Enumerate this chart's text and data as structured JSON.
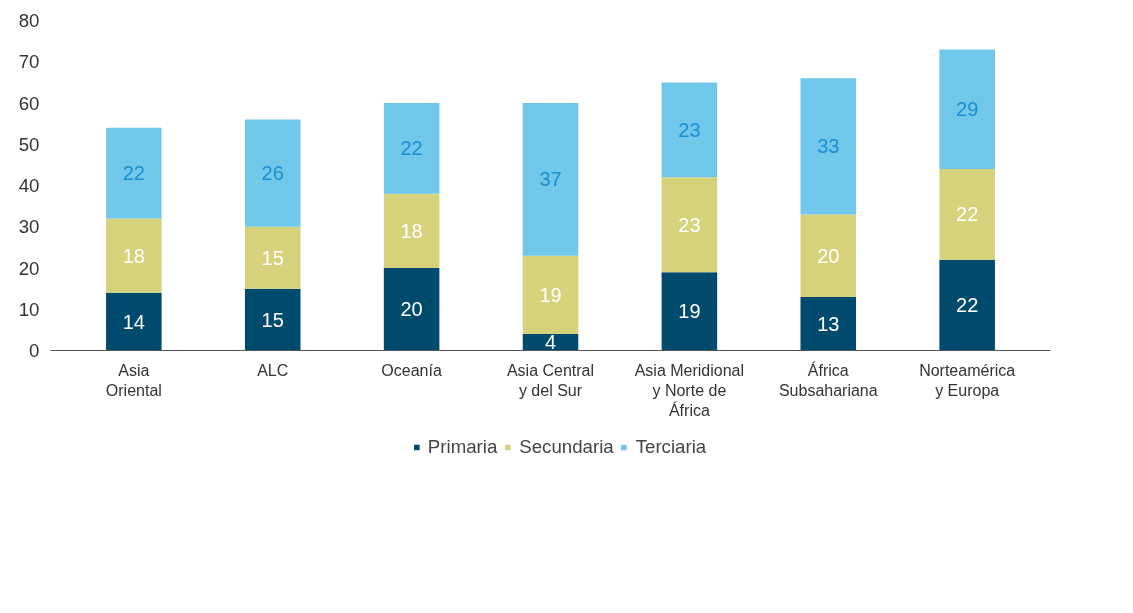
{
  "chart_data": {
    "type": "bar",
    "stacked": true,
    "data_labels": true,
    "grid": false,
    "legend": "bottom",
    "categories": [
      "Asia\nOriental",
      "ALC",
      "Oceanía",
      "Asia Central\ny del Sur",
      "Asia Meridional\ny Norte de\nÁfrica",
      "África\nSubsahariana",
      "Norteamérica\ny Europa"
    ],
    "series": [
      {
        "name": "Primaria",
        "color": "#004a6e",
        "values": [
          14,
          15,
          20,
          4,
          19,
          13,
          22
        ]
      },
      {
        "name": "Secundaria",
        "color": "#d6d27c",
        "values": [
          18,
          15,
          18,
          19,
          23,
          20,
          22
        ]
      },
      {
        "name": "Terciaria",
        "color": "#70c7ea",
        "values": [
          22,
          26,
          22,
          37,
          23,
          33,
          29
        ]
      }
    ],
    "ylim": [
      0,
      80
    ],
    "yticks": [
      0,
      10,
      20,
      30,
      40,
      50,
      60,
      70,
      80
    ]
  }
}
